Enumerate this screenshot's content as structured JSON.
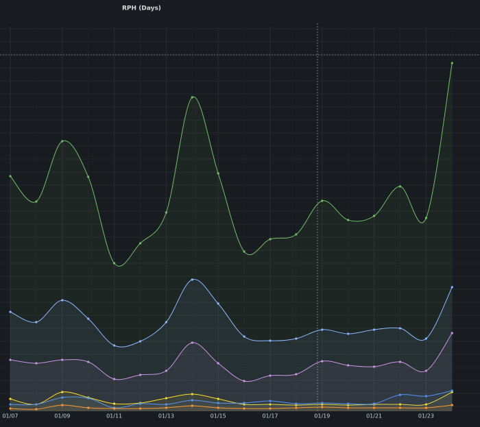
{
  "chart_data": {
    "type": "line",
    "title": "RPH (Days)",
    "categories": [
      "01/07",
      null,
      "01/09",
      null,
      "01/11",
      null,
      "01/13",
      null,
      "01/15",
      null,
      "01/17",
      null,
      "01/19",
      null,
      "01/21",
      null,
      "01/23",
      null
    ],
    "series": [
      {
        "color": "#73bf69",
        "values": [
          343,
          306,
          394,
          342,
          216,
          245,
          290,
          458,
          347,
          233,
          251,
          258,
          307,
          279,
          285,
          328,
          282,
          508
        ]
      },
      {
        "color": "#8ab8ff",
        "values": [
          145,
          130,
          162,
          135,
          96,
          102,
          130,
          192,
          157,
          109,
          103,
          106,
          119,
          113,
          119,
          121,
          106,
          181
        ]
      },
      {
        "color": "#ca95e5",
        "values": [
          75,
          70,
          75,
          72,
          47,
          53,
          59,
          100,
          70,
          44,
          52,
          54,
          73,
          67,
          65,
          72,
          59,
          114
        ]
      },
      {
        "color": "#fade2a",
        "values": [
          18,
          10,
          28,
          20,
          11,
          12,
          19,
          25,
          18,
          10,
          10,
          9,
          10,
          9,
          10,
          10,
          10,
          28
        ]
      },
      {
        "color": "#5794f2",
        "values": [
          10,
          10,
          20,
          19,
          5,
          11,
          10,
          16,
          12,
          12,
          15,
          11,
          12,
          11,
          11,
          24,
          22,
          30
        ]
      },
      {
        "color": "#ff9830",
        "values": [
          4,
          3,
          9,
          5,
          4,
          4,
          5,
          8,
          5,
          4,
          4,
          5,
          6,
          5,
          5,
          5,
          5,
          9
        ]
      }
    ],
    "threshold_line": 520,
    "ylim": [
      0,
      560
    ],
    "grid": true
  }
}
